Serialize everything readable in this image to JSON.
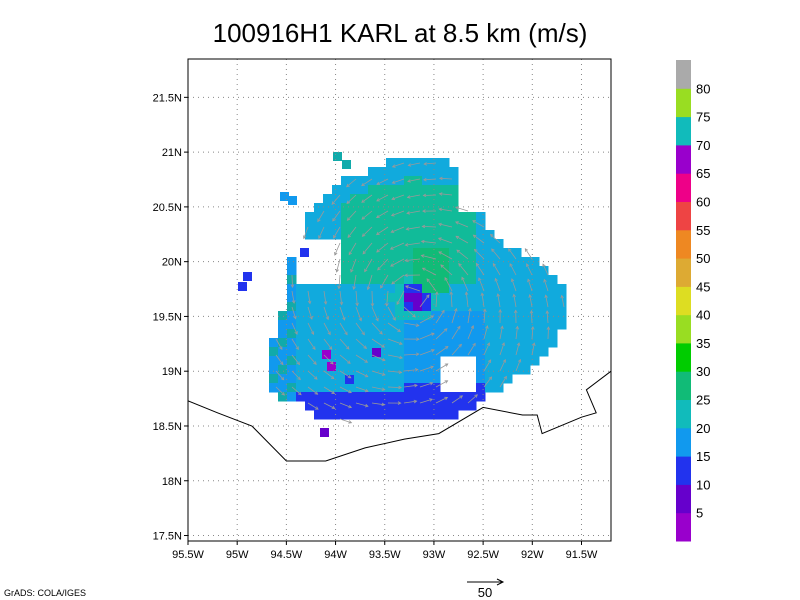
{
  "chart_data": {
    "type": "heatmap",
    "title": "100916H1 KARL at 8.5 km (m/s)",
    "x_range": [
      -95.5,
      -91.2
    ],
    "y_range": [
      17.45,
      21.85
    ],
    "x_ticks": [
      {
        "value": -95.5,
        "label": "95.5W"
      },
      {
        "value": -95.0,
        "label": "95W"
      },
      {
        "value": -94.5,
        "label": "94.5W"
      },
      {
        "value": -94.0,
        "label": "94W"
      },
      {
        "value": -93.5,
        "label": "93.5W"
      },
      {
        "value": -93.0,
        "label": "93W"
      },
      {
        "value": -92.5,
        "label": "92.5W"
      },
      {
        "value": -92.0,
        "label": "92W"
      },
      {
        "value": -91.5,
        "label": "91.5W"
      }
    ],
    "y_ticks": [
      {
        "value": 17.5,
        "label": "17.5N"
      },
      {
        "value": 18.0,
        "label": "18N"
      },
      {
        "value": 18.5,
        "label": "18.5N"
      },
      {
        "value": 19.0,
        "label": "19N"
      },
      {
        "value": 19.5,
        "label": "19.5N"
      },
      {
        "value": 20.0,
        "label": "20N"
      },
      {
        "value": 20.5,
        "label": "20.5N"
      },
      {
        "value": 21.0,
        "label": "21N"
      },
      {
        "value": 21.5,
        "label": "21.5N"
      }
    ],
    "grid": true,
    "storm_center": {
      "lon": -93.2,
      "lat": 19.65
    },
    "colorbar": {
      "placement": "right",
      "labels": [
        "5",
        "10",
        "15",
        "20",
        "25",
        "30",
        "35",
        "40",
        "45",
        "50",
        "55",
        "60",
        "65",
        "70",
        "75",
        "80"
      ],
      "colors": [
        "#9900cc",
        "#6600cc",
        "#2233ee",
        "#1199ee",
        "#11bbbb",
        "#11bb77",
        "#00cc00",
        "#99dd22",
        "#dddd22",
        "#ddaa33",
        "#ee8822",
        "#ee4444",
        "#ee0088",
        "#9900cc",
        "#11bbbb",
        "#99dd22",
        "#aaaaaa"
      ]
    },
    "coastline": [
      [
        -95.5,
        18.73
      ],
      [
        -95.2,
        18.62
      ],
      [
        -94.85,
        18.5
      ],
      [
        -94.5,
        18.18
      ],
      [
        -94.1,
        18.18
      ],
      [
        -93.7,
        18.3
      ],
      [
        -93.3,
        18.38
      ],
      [
        -92.95,
        18.43
      ],
      [
        -92.5,
        18.67
      ],
      [
        -92.1,
        18.6
      ],
      [
        -91.95,
        18.6
      ],
      [
        -91.9,
        18.43
      ],
      [
        -91.5,
        18.58
      ],
      [
        -91.35,
        18.62
      ],
      [
        -91.45,
        18.83
      ],
      [
        -91.2,
        19.0
      ]
    ],
    "reference_vector": {
      "label": "50"
    }
  },
  "footer": {
    "credit": "GrADS: COLA/IGES"
  }
}
